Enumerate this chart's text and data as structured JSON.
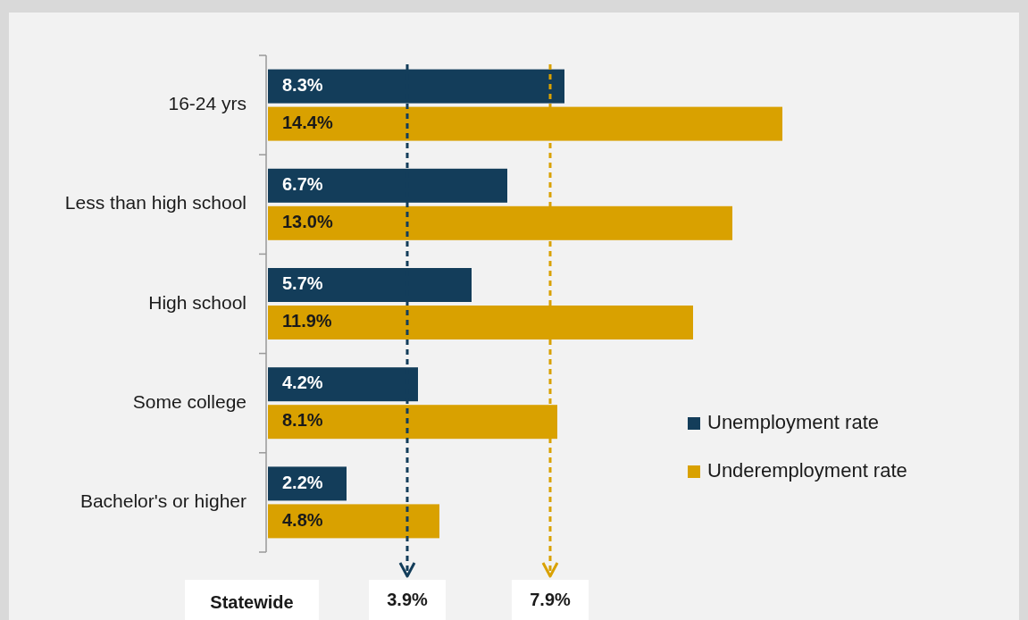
{
  "chart_data": {
    "type": "bar",
    "orientation": "horizontal",
    "categories": [
      "16-24 yrs",
      "Less than high school",
      "High school",
      "Some college",
      "Bachelor's or higher"
    ],
    "series": [
      {
        "name": "Unemployment rate",
        "color": "#133d5a",
        "values": [
          8.3,
          6.7,
          5.7,
          4.2,
          2.2
        ],
        "value_labels": [
          "8.3%",
          "6.7%",
          "5.7%",
          "4.2%",
          "2.2%"
        ]
      },
      {
        "name": "Underemployment rate",
        "color": "#d9a100",
        "values": [
          14.4,
          13.0,
          11.9,
          8.1,
          4.8
        ],
        "value_labels": [
          "14.4%",
          "13.0%",
          "11.9%",
          "8.1%",
          "4.8%"
        ]
      }
    ],
    "ref_lines": [
      {
        "axis": "x",
        "value": 3.9,
        "label": "3.9%",
        "color": "#133d5a",
        "line_style": "dashed"
      },
      {
        "axis": "x",
        "value": 7.9,
        "label": "7.9%",
        "color": "#d9a100",
        "line_style": "dashed"
      }
    ],
    "annotations": [
      "Statewide"
    ],
    "legend": "right"
  }
}
